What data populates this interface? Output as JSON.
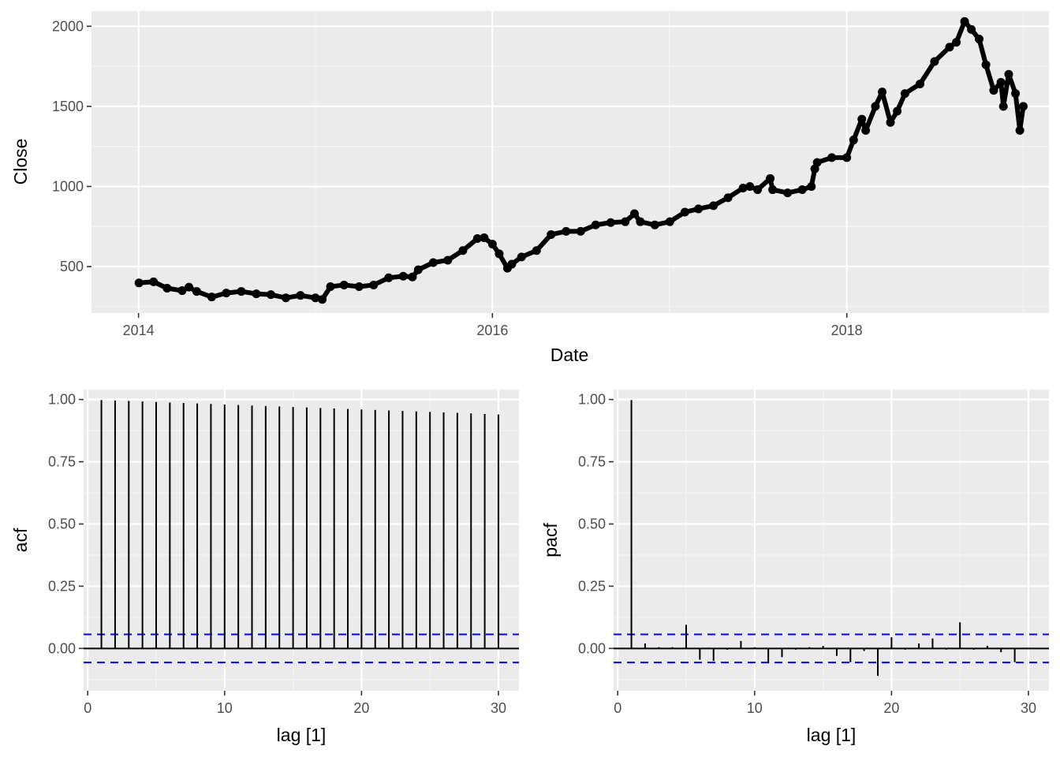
{
  "colors": {
    "panel_background": "#ebebeb",
    "grid_major": "#ffffff",
    "grid_minor": "#f5f5f5",
    "series": "#000000",
    "confidence_band": "#0000ff",
    "tick_text": "#4d4d4d"
  },
  "chart_data": [
    {
      "type": "line",
      "xlabel": "Date",
      "ylabel": "Close",
      "xlim": [
        "2013-09-26",
        "2019-02-22"
      ],
      "ylim": [
        210,
        2095
      ],
      "x_ticks": [
        "2014-01-01",
        "2016-01-01",
        "2018-01-01"
      ],
      "x_tick_labels": [
        "2014",
        "2016",
        "2018"
      ],
      "y_ticks": [
        500,
        1000,
        1500,
        2000
      ],
      "y_tick_labels": [
        "500",
        "1000",
        "1500",
        "2000"
      ],
      "grid": true,
      "markers": true,
      "series": [
        {
          "x": [
            "2014-01-02",
            "2014-02-01",
            "2014-03-01",
            "2014-04-01",
            "2014-04-15",
            "2014-05-01",
            "2014-06-01",
            "2014-07-01",
            "2014-08-01",
            "2014-09-01",
            "2014-10-01",
            "2014-11-01",
            "2014-12-01",
            "2015-01-01",
            "2015-01-15",
            "2015-02-01",
            "2015-03-01",
            "2015-04-01",
            "2015-05-01",
            "2015-06-01",
            "2015-07-01",
            "2015-07-20",
            "2015-08-01",
            "2015-09-01",
            "2015-10-01",
            "2015-11-01",
            "2015-12-01",
            "2015-12-15",
            "2016-01-01",
            "2016-01-15",
            "2016-02-01",
            "2016-02-10",
            "2016-03-01",
            "2016-04-01",
            "2016-05-01",
            "2016-06-01",
            "2016-07-01",
            "2016-08-01",
            "2016-09-01",
            "2016-10-01",
            "2016-10-20",
            "2016-11-01",
            "2016-12-01",
            "2017-01-01",
            "2017-02-01",
            "2017-03-01",
            "2017-04-01",
            "2017-05-01",
            "2017-06-01",
            "2017-06-15",
            "2017-07-01",
            "2017-07-27",
            "2017-08-01",
            "2017-09-01",
            "2017-10-01",
            "2017-10-20",
            "2017-10-27",
            "2017-11-01",
            "2017-12-01",
            "2018-01-01",
            "2018-01-15",
            "2018-02-01",
            "2018-02-09",
            "2018-03-01",
            "2018-03-15",
            "2018-04-01",
            "2018-04-15",
            "2018-05-01",
            "2018-06-01",
            "2018-07-01",
            "2018-08-01",
            "2018-08-15",
            "2018-09-01",
            "2018-09-15",
            "2018-10-01",
            "2018-10-15",
            "2018-10-31",
            "2018-11-15",
            "2018-11-20",
            "2018-12-01",
            "2018-12-15",
            "2018-12-24",
            "2018-12-31"
          ],
          "y": [
            398,
            405,
            365,
            350,
            372,
            345,
            310,
            335,
            345,
            330,
            325,
            305,
            320,
            305,
            295,
            375,
            385,
            375,
            385,
            430,
            440,
            435,
            480,
            525,
            540,
            600,
            675,
            680,
            640,
            580,
            490,
            515,
            560,
            600,
            700,
            720,
            720,
            760,
            775,
            780,
            830,
            780,
            760,
            780,
            840,
            860,
            880,
            930,
            990,
            1000,
            980,
            1050,
            980,
            960,
            980,
            1000,
            1110,
            1150,
            1180,
            1180,
            1290,
            1420,
            1350,
            1500,
            1590,
            1400,
            1470,
            1580,
            1640,
            1780,
            1870,
            1900,
            2030,
            1980,
            1920,
            1760,
            1600,
            1650,
            1500,
            1700,
            1580,
            1350,
            1500
          ]
        }
      ]
    },
    {
      "type": "bar",
      "xlabel": "lag [1]",
      "ylabel": "acf",
      "xlim": [
        -0.3,
        31.5
      ],
      "ylim": [
        -0.17,
        1.04
      ],
      "x_ticks": [
        0,
        10,
        20,
        30
      ],
      "x_tick_labels": [
        "0",
        "10",
        "20",
        "30"
      ],
      "y_ticks": [
        0,
        0.25,
        0.5,
        0.75,
        1
      ],
      "y_tick_labels": [
        "0.00",
        "0.25",
        "0.50",
        "0.75",
        "1.00"
      ],
      "grid": true,
      "confidence_bounds": [
        0.0565,
        -0.0565
      ],
      "lags": [
        1,
        2,
        3,
        4,
        5,
        6,
        7,
        8,
        9,
        10,
        11,
        12,
        13,
        14,
        15,
        16,
        17,
        18,
        19,
        20,
        21,
        22,
        23,
        24,
        25,
        26,
        27,
        28,
        29,
        30
      ],
      "values": [
        0.998,
        0.996,
        0.994,
        0.992,
        0.99,
        0.988,
        0.986,
        0.984,
        0.982,
        0.98,
        0.978,
        0.976,
        0.974,
        0.972,
        0.97,
        0.968,
        0.966,
        0.964,
        0.962,
        0.96,
        0.958,
        0.956,
        0.954,
        0.952,
        0.95,
        0.948,
        0.946,
        0.944,
        0.942,
        0.94
      ]
    },
    {
      "type": "bar",
      "xlabel": "lag [1]",
      "ylabel": "pacf",
      "xlim": [
        -0.3,
        31.5
      ],
      "ylim": [
        -0.17,
        1.04
      ],
      "x_ticks": [
        0,
        10,
        20,
        30
      ],
      "x_tick_labels": [
        "0",
        "10",
        "20",
        "30"
      ],
      "y_ticks": [
        0,
        0.25,
        0.5,
        0.75,
        1
      ],
      "y_tick_labels": [
        "0.00",
        "0.25",
        "0.50",
        "0.75",
        "1.00"
      ],
      "grid": true,
      "confidence_bounds": [
        0.0565,
        -0.0565
      ],
      "lags": [
        1,
        2,
        3,
        4,
        5,
        6,
        7,
        8,
        9,
        10,
        11,
        12,
        13,
        14,
        15,
        16,
        17,
        18,
        19,
        20,
        21,
        22,
        23,
        24,
        25,
        26,
        27,
        28,
        29
      ],
      "values": [
        0.998,
        0.02,
        0.005,
        0.005,
        0.095,
        -0.045,
        -0.05,
        -0.005,
        0.03,
        0.005,
        -0.06,
        -0.035,
        -0.005,
        0.005,
        0.01,
        -0.03,
        -0.055,
        -0.01,
        -0.11,
        0.045,
        -0.005,
        0.02,
        0.04,
        -0.005,
        0.105,
        -0.005,
        0.01,
        -0.015,
        -0.055
      ]
    }
  ]
}
